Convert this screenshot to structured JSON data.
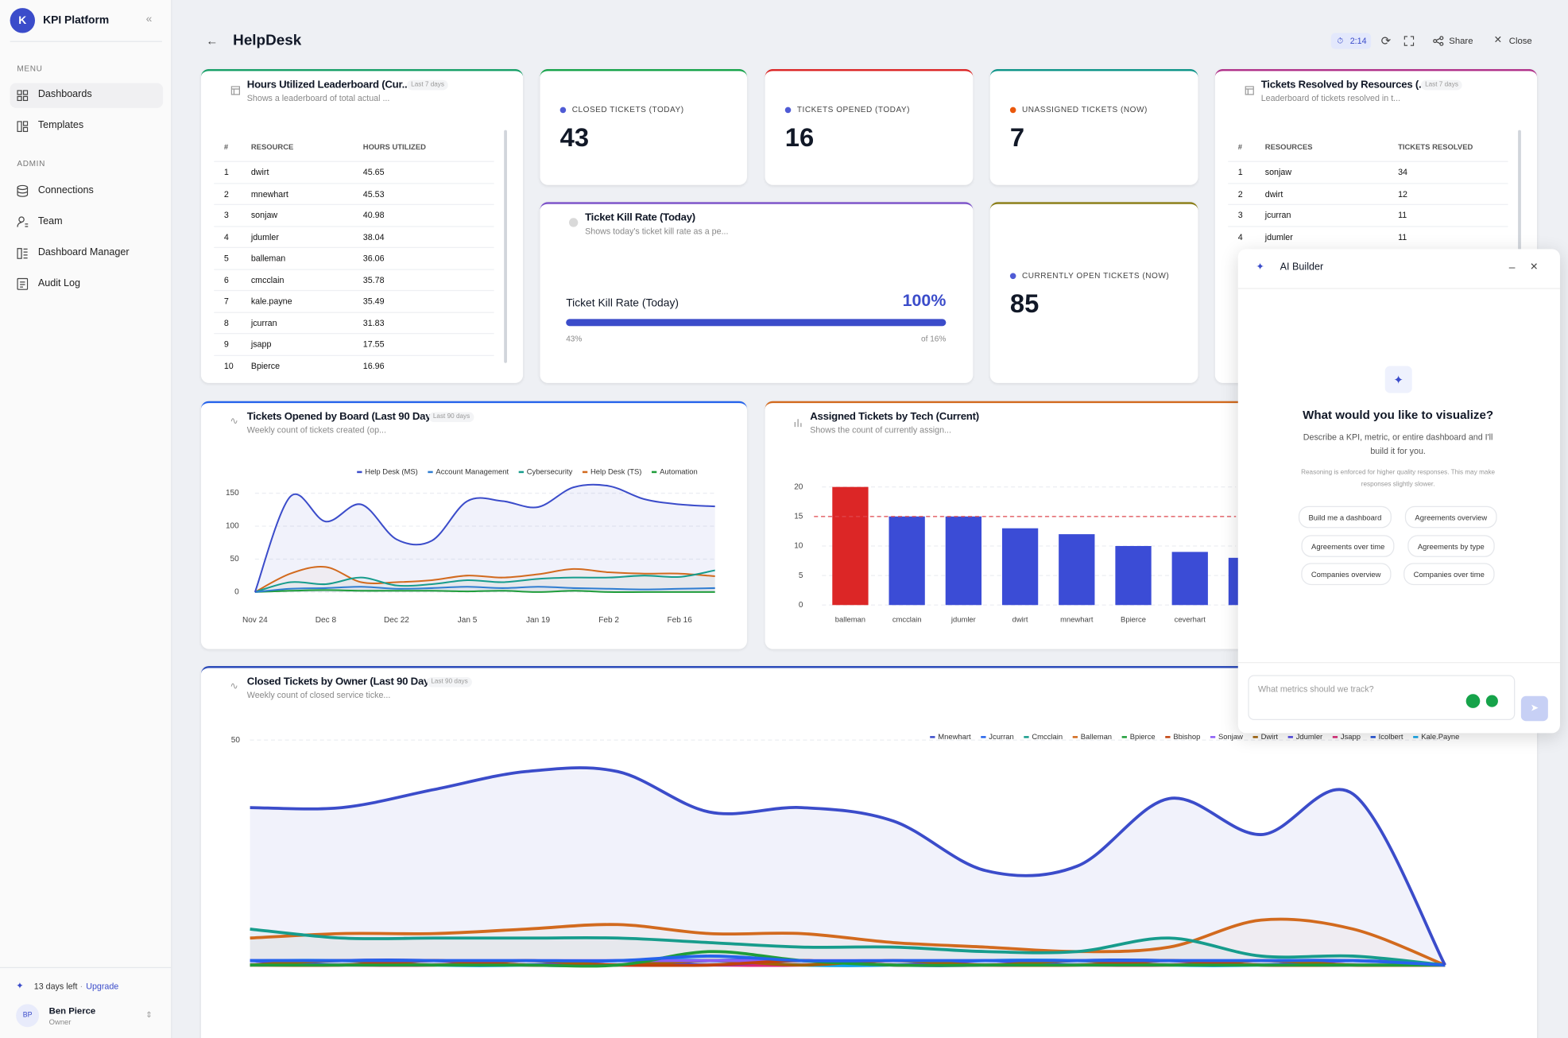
{
  "sidebar": {
    "logo": "K",
    "brand": "KPI Platform",
    "menu_heading": "MENU",
    "menu": [
      "Dashboards",
      "Templates"
    ],
    "admin_heading": "ADMIN",
    "admin": [
      "Connections",
      "Team",
      "Dashboard Manager",
      "Audit Log"
    ],
    "trial": "13 days left",
    "upgrade": "Upgrade",
    "user": {
      "initials": "BP",
      "name": "Ben Pierce",
      "role": "Owner"
    }
  },
  "header": {
    "title": "HelpDesk",
    "timer": "2:14",
    "share": "Share",
    "close": "Close"
  },
  "hours_leaderboard": {
    "title": "Hours Utilized Leaderboard (Cur...",
    "badge": "Last 7 days",
    "subtitle": "Shows a leaderboard of total actual ...",
    "columns": [
      "#",
      "RESOURCE",
      "HOURS UTILIZED"
    ],
    "rows": [
      [
        1,
        "dwirt",
        45.65
      ],
      [
        2,
        "mnewhart",
        45.53
      ],
      [
        3,
        "sonjaw",
        40.98
      ],
      [
        4,
        "jdumler",
        38.04
      ],
      [
        5,
        "balleman",
        36.06
      ],
      [
        6,
        "cmcclain",
        35.78
      ],
      [
        7,
        "kale.payne",
        35.49
      ],
      [
        8,
        "jcurran",
        31.83
      ],
      [
        9,
        "jsapp",
        17.55
      ],
      [
        10,
        "Bpierce",
        16.96
      ]
    ]
  },
  "kpis": [
    {
      "label": "CLOSED TICKETS (TODAY)",
      "value": 43,
      "color": "#4f5bd5",
      "accent": "#16a34a"
    },
    {
      "label": "TICKETS OPENED (TODAY)",
      "value": 16,
      "color": "#4f5bd5",
      "accent": "#dc2626"
    },
    {
      "label": "UNASSIGNED TICKETS (NOW)",
      "value": 7,
      "color": "#ea580c",
      "accent": "#0d9488"
    },
    {
      "label": "CURRENTLY OPEN TICKETS (NOW)",
      "value": 85,
      "color": "#4f5bd5",
      "accent": "#8a7d16"
    }
  ],
  "kill_rate": {
    "title": "Ticket Kill Rate (Today)",
    "subtitle": "Shows today's ticket kill rate as a pe...",
    "label": "Ticket Kill Rate (Today)",
    "value": 100,
    "value_label": "100%",
    "range": [
      0,
      100
    ],
    "caption_left": "43%",
    "caption_right": "of 16%",
    "color": "#3b4cca"
  },
  "tickets_resolved": {
    "title": "Tickets Resolved by Resources (...",
    "badge": "Last 7 days",
    "subtitle": "Leaderboard of tickets resolved in t...",
    "columns": [
      "#",
      "RESOURCES",
      "TICKETS RESOLVED"
    ],
    "rows": [
      [
        1,
        "sonjaw",
        34
      ],
      [
        2,
        "dwirt",
        12
      ],
      [
        3,
        "jcurran",
        11
      ],
      [
        4,
        "jdumler",
        11
      ]
    ]
  },
  "tickets_opened": {
    "type": "line",
    "title": "Tickets Opened by Board (Last 90 Days)",
    "badge": "Last 90 days",
    "subtitle": "Weekly count of tickets created (op...",
    "categories": [
      "Nov 24",
      null,
      "Dec 8",
      null,
      "Dec 22",
      null,
      "Jan 5",
      null,
      "Jan 19",
      null,
      "Feb 2",
      null,
      "Feb 16",
      null
    ],
    "ylim": [
      0,
      170
    ],
    "yticks": [
      0,
      50,
      100,
      150
    ],
    "grid": true,
    "series": [
      {
        "name": "Help Desk (MS)",
        "color": "#3b4cca",
        "values": [
          0,
          145,
          107,
          133,
          80,
          78,
          138,
          138,
          129,
          159,
          161,
          141,
          133,
          130
        ]
      },
      {
        "name": "Account Management",
        "color": "#2f7dd1",
        "values": [
          0,
          5,
          6,
          8,
          5,
          6,
          8,
          6,
          8,
          6,
          5,
          4,
          5,
          6
        ]
      },
      {
        "name": "Cybersecurity",
        "color": "#179c8c",
        "values": [
          0,
          15,
          12,
          22,
          10,
          12,
          18,
          15,
          20,
          22,
          22,
          25,
          23,
          33
        ]
      },
      {
        "name": "Help Desk (TS)",
        "color": "#d26a1e",
        "values": [
          0,
          28,
          38,
          15,
          15,
          18,
          25,
          22,
          27,
          35,
          30,
          28,
          28,
          24
        ]
      },
      {
        "name": "Automation",
        "color": "#1f9d3a",
        "values": [
          0,
          2,
          3,
          2,
          2,
          2,
          1,
          2,
          0,
          2,
          0,
          0,
          0,
          0
        ]
      }
    ]
  },
  "assigned_tickets": {
    "type": "bar",
    "title": "Assigned Tickets by Tech (Current)",
    "subtitle": "Shows the count of currently assign...",
    "categories": [
      "balleman",
      "cmcclain",
      "jdumler",
      "dwirt",
      "mnewhart",
      "Bpierce",
      "ceverhart",
      null
    ],
    "values": [
      20,
      15,
      15,
      13,
      12,
      10,
      9,
      8
    ],
    "colors": [
      "#dc2626",
      "#3b4cd6",
      "#3b4cd6",
      "#3b4cd6",
      "#3b4cd6",
      "#3b4cd6",
      "#3b4cd6",
      "#3b4cd6"
    ],
    "reference_line": 15,
    "reference_color": "#e0474c",
    "ylim": [
      0,
      21
    ],
    "yticks": [
      0,
      5,
      10,
      15,
      20
    ],
    "grid": true
  },
  "closed_by_owner": {
    "type": "line",
    "title": "Closed Tickets by Owner (Last 90 Days)",
    "badge": "Last 90 days",
    "subtitle": "Weekly count of closed service ticke...",
    "categories": [
      null,
      null,
      null,
      null,
      null,
      null,
      null,
      null,
      null,
      null,
      null,
      null,
      null,
      null
    ],
    "ylim": [
      0,
      50
    ],
    "yticks": [
      50
    ],
    "grid": true,
    "series": [
      {
        "name": "Mnewhart",
        "color": "#3b4cca",
        "values": [
          35,
          35,
          39,
          43,
          43,
          34,
          35,
          32,
          21,
          22,
          37,
          29,
          38,
          0
        ]
      },
      {
        "name": "Jcurran",
        "color": "#2563eb",
        "values": [
          1,
          1,
          1,
          1,
          1,
          2,
          1,
          1,
          1,
          1,
          1,
          1,
          1,
          0
        ]
      },
      {
        "name": "Cmcclain",
        "color": "#179c8c",
        "values": [
          8,
          6,
          6,
          6,
          6,
          5,
          4,
          4,
          3,
          3,
          6,
          2,
          2,
          0
        ]
      },
      {
        "name": "Balleman",
        "color": "#d26a1e",
        "values": [
          6,
          7,
          7,
          8,
          9,
          7,
          7,
          5,
          4,
          3,
          4,
          10,
          8,
          0
        ]
      },
      {
        "name": "Bpierce",
        "color": "#1f9d3a",
        "values": [
          0,
          0,
          0,
          0,
          0,
          3,
          1,
          0,
          0,
          0,
          0,
          0,
          0,
          0
        ]
      },
      {
        "name": "Bbishop",
        "color": "#c2410c",
        "values": [
          0,
          0,
          1,
          0,
          0,
          0,
          1,
          0,
          0,
          0,
          1,
          0,
          0,
          0
        ]
      },
      {
        "name": "Sonjaw",
        "color": "#8b5cf6",
        "values": [
          1,
          1,
          1,
          1,
          1,
          1,
          1,
          1,
          1,
          1,
          1,
          1,
          1,
          0
        ]
      },
      {
        "name": "Dwirt",
        "color": "#a16207",
        "values": [
          0,
          1,
          0,
          1,
          0,
          1,
          0,
          1,
          0,
          1,
          0,
          1,
          0,
          0
        ]
      },
      {
        "name": "Jdumler",
        "color": "#4f46e5",
        "values": [
          1,
          0,
          1,
          0,
          1,
          0,
          1,
          0,
          1,
          0,
          1,
          0,
          1,
          0
        ]
      },
      {
        "name": "Jsapp",
        "color": "#db2777",
        "values": [
          0,
          0,
          0,
          1,
          0,
          0,
          0,
          1,
          0,
          0,
          0,
          1,
          0,
          0
        ]
      },
      {
        "name": "Icolbert",
        "color": "#1d4ed8",
        "values": [
          0,
          1,
          1,
          0,
          0,
          1,
          1,
          0,
          0,
          1,
          1,
          0,
          0,
          0
        ]
      },
      {
        "name": "Kale.Payne",
        "color": "#0ea5e9",
        "values": [
          1,
          1,
          0,
          0,
          1,
          1,
          0,
          0,
          1,
          1,
          0,
          0,
          1,
          0
        ]
      }
    ]
  },
  "ai_builder": {
    "title": "AI Builder",
    "heading": "What would you like to visualize?",
    "description": [
      "Describe a KPI, metric, or entire dashboard and I'll",
      "build it for you."
    ],
    "note": [
      "Reasoning is enforced for higher quality responses. This may make",
      "responses slightly slower."
    ],
    "suggestions": [
      "Build me a dashboard",
      "Agreements overview",
      "Agreements over time",
      "Agreements by type",
      "Companies overview",
      "Companies over time"
    ],
    "placeholder": "What metrics should we track?"
  }
}
